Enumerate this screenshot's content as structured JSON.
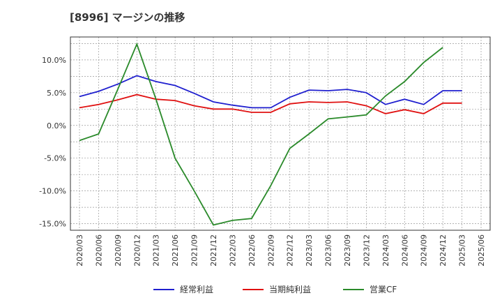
{
  "chart_data": {
    "type": "line",
    "title": "[8996]  マージンの推移",
    "xlabel": "",
    "ylabel": "",
    "ylim": [
      -16,
      13.5
    ],
    "yticks": [
      -15,
      -10,
      -5,
      0,
      5,
      10
    ],
    "ytick_labels": [
      "-15.0%",
      "-10.0%",
      "-5.0%",
      "0.0%",
      "5.0%",
      "10.0%"
    ],
    "x": [
      "2020/03",
      "2020/06",
      "2020/09",
      "2020/12",
      "2021/03",
      "2021/06",
      "2021/09",
      "2021/12",
      "2022/03",
      "2022/06",
      "2022/09",
      "2022/12",
      "2023/03",
      "2023/06",
      "2023/09",
      "2023/12",
      "2024/03",
      "2024/06",
      "2024/09",
      "2024/12",
      "2025/03",
      "2025/06"
    ],
    "grid": true,
    "legend_position": "bottom",
    "series": [
      {
        "name": "経常利益",
        "color": "#1f1fcf",
        "values": [
          4.4,
          5.2,
          6.3,
          7.6,
          6.7,
          6.1,
          4.9,
          3.6,
          3.1,
          2.7,
          2.7,
          4.3,
          5.4,
          5.3,
          5.5,
          5.0,
          3.2,
          4.0,
          3.2,
          5.3,
          5.3,
          null
        ]
      },
      {
        "name": "当期純利益",
        "color": "#e01010",
        "values": [
          2.7,
          3.2,
          3.9,
          4.7,
          4.0,
          3.8,
          3.0,
          2.5,
          2.5,
          2.0,
          2.0,
          3.3,
          3.6,
          3.5,
          3.6,
          3.0,
          1.8,
          2.4,
          1.8,
          3.4,
          3.4,
          null
        ]
      },
      {
        "name": "営業CF",
        "color": "#2a8a2a",
        "values": [
          -2.3,
          -1.3,
          5.5,
          12.4,
          4.0,
          -5.0,
          -10.0,
          -15.2,
          -14.5,
          -14.2,
          -9.2,
          -3.5,
          -1.3,
          1.0,
          1.3,
          1.6,
          4.5,
          6.7,
          9.6,
          11.9,
          null,
          null
        ]
      }
    ]
  }
}
